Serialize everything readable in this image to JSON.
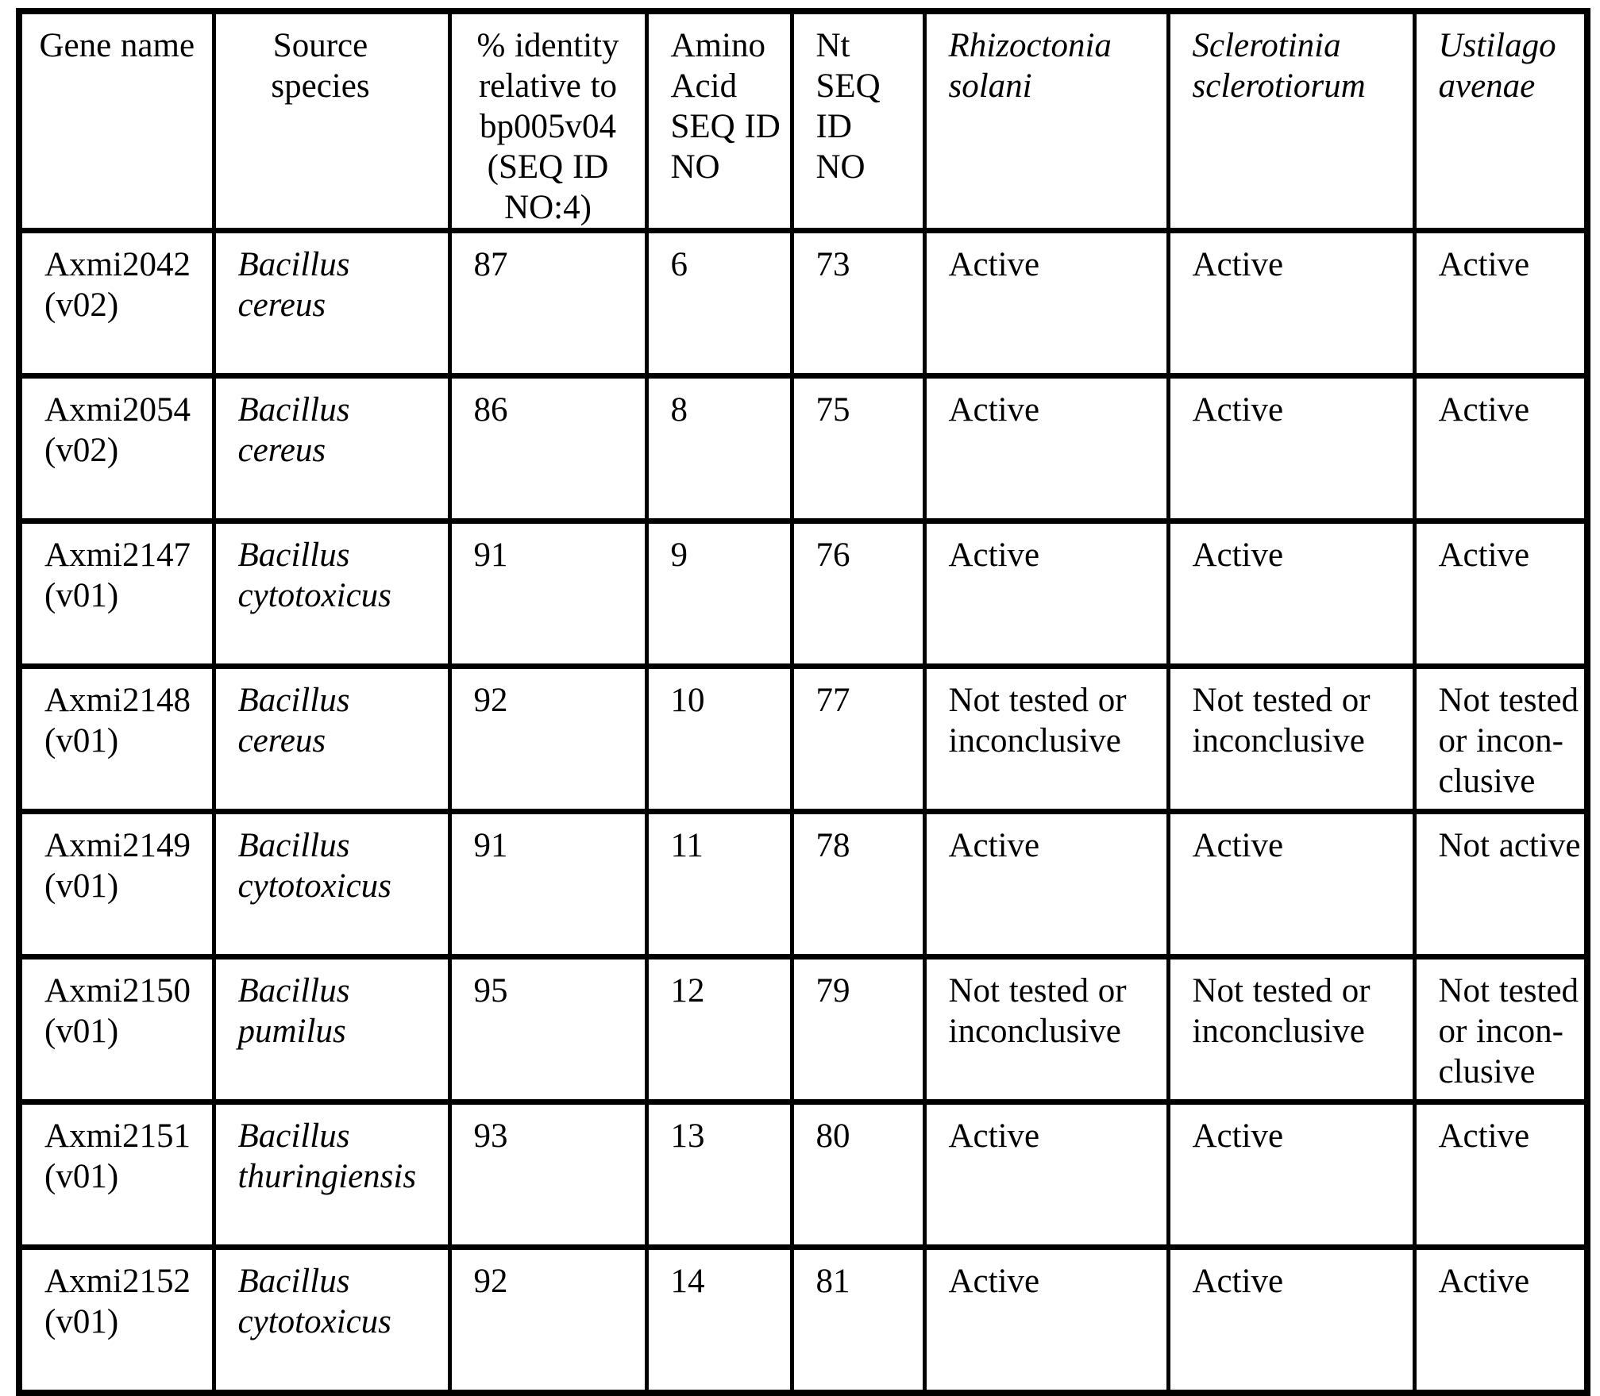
{
  "table": {
    "columns": [
      {
        "label": "Gene name"
      },
      {
        "label": "Source species"
      },
      {
        "label": "% identity relative to bp005v04 (SEQ ID NO:4)"
      },
      {
        "label": "Amino Acid SEQ ID NO"
      },
      {
        "label": "Nt SEQ ID NO"
      },
      {
        "label": "Rhizoctonia solani"
      },
      {
        "label": "Sclerotinia sclerotiorum"
      },
      {
        "label": "Ustilago avenae"
      }
    ],
    "rows": [
      {
        "cells": [
          "Axmi2042 (v02)",
          "Bacillus cereus",
          "87",
          "6",
          "73",
          "Active",
          "Active",
          "Active"
        ]
      },
      {
        "cells": [
          "Axmi2054 (v02)",
          "Bacillus cereus",
          "86",
          "8",
          "75",
          "Active",
          "Active",
          "Active"
        ]
      },
      {
        "cells": [
          "Axmi2147 (v01)",
          "Bacillus cytotoxicus",
          "91",
          "9",
          "76",
          "Active",
          "Active",
          "Active"
        ]
      },
      {
        "cells": [
          "Axmi2148 (v01)",
          "Bacillus cereus",
          "92",
          "10",
          "77",
          "Not tested or inconclusive",
          "Not tested or inconclusive",
          "Not tested or incon-clusive"
        ]
      },
      {
        "cells": [
          "Axmi2149 (v01)",
          "Bacillus cytotoxicus",
          "91",
          "11",
          "78",
          "Active",
          "Active",
          "Not active"
        ]
      },
      {
        "cells": [
          "Axmi2150 (v01)",
          "Bacillus pumilus",
          "95",
          "12",
          "79",
          "Not tested or inconclusive",
          "Not tested or inconclusive",
          "Not tested or incon-clusive"
        ]
      },
      {
        "cells": [
          "Axmi2151 (v01)",
          "Bacillus thuringiensis",
          "93",
          "13",
          "80",
          "Active",
          "Active",
          "Active"
        ]
      },
      {
        "cells": [
          "Axmi2152 (v01)",
          "Bacillus cytotoxicus",
          "92",
          "14",
          "81",
          "Active",
          "Active",
          "Active"
        ]
      }
    ],
    "colors": {
      "text": "#000000",
      "border": "#000000",
      "background": "#ffffff"
    }
  }
}
